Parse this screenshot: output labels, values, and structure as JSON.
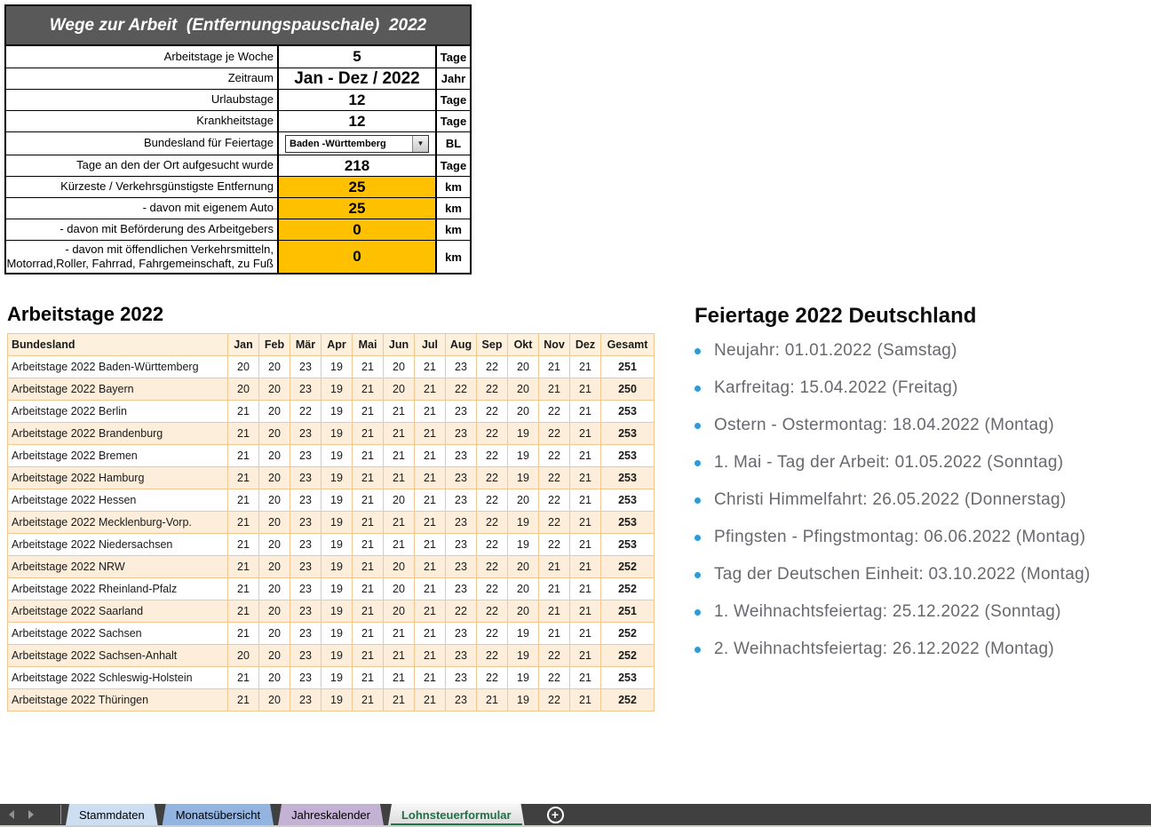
{
  "form": {
    "title": "Wege zur Arbeit  (Entfernungspauschale)  2022",
    "rows": [
      {
        "label": "Arbeitstage je Woche",
        "value": "5",
        "unit": "Tage",
        "highlight": false,
        "type": "value"
      },
      {
        "label": "Zeitraum",
        "value": "Jan - Dez / 2022",
        "unit": "Jahr",
        "highlight": false,
        "type": "value"
      },
      {
        "label": "Urlaubstage",
        "value": "12",
        "unit": "Tage",
        "highlight": false,
        "type": "value"
      },
      {
        "label": "Krankheitstage",
        "value": "12",
        "unit": "Tage",
        "highlight": false,
        "type": "value"
      },
      {
        "label": "Bundesland für Feiertage",
        "value": "Baden -Württemberg",
        "unit": "BL",
        "highlight": false,
        "type": "dropdown"
      },
      {
        "label": "Tage an den der Ort aufgesucht wurde",
        "value": "218",
        "unit": "Tage",
        "highlight": false,
        "type": "value"
      },
      {
        "label": "Kürzeste / Verkehrsgünstigste Entfernung",
        "value": "25",
        "unit": "km",
        "highlight": true,
        "type": "value"
      },
      {
        "label": "- davon mit eigenem Auto",
        "value": "25",
        "unit": "km",
        "highlight": true,
        "type": "value"
      },
      {
        "label": "- davon mit Beförderung des Arbeitgebers",
        "value": "0",
        "unit": "km",
        "highlight": true,
        "type": "value"
      },
      {
        "label": "- davon mit öffendlichen Verkehrsmitteln,\nMotorrad,Roller, Fahrrad, Fahrgemeinschaft, zu Fuß",
        "value": "0",
        "unit": "km",
        "highlight": true,
        "type": "value"
      }
    ],
    "dropdown_icon": "chevron-down-icon",
    "highlight_color": "#FFC000"
  },
  "worktable": {
    "heading": "Arbeitstage 2022",
    "columns": [
      "Bundesland",
      "Jan",
      "Feb",
      "Mär",
      "Apr",
      "Mai",
      "Jun",
      "Jul",
      "Aug",
      "Sep",
      "Okt",
      "Nov",
      "Dez",
      "Gesamt"
    ],
    "rows": [
      {
        "name": "Arbeitstage 2022 Baden-Württemberg",
        "values": [
          20,
          20,
          23,
          19,
          21,
          20,
          21,
          23,
          22,
          20,
          21,
          21
        ],
        "total": 251
      },
      {
        "name": "Arbeitstage 2022 Bayern",
        "values": [
          20,
          20,
          23,
          19,
          21,
          20,
          21,
          22,
          22,
          20,
          21,
          21
        ],
        "total": 250
      },
      {
        "name": "Arbeitstage 2022 Berlin",
        "values": [
          21,
          20,
          22,
          19,
          21,
          21,
          21,
          23,
          22,
          20,
          22,
          21
        ],
        "total": 253
      },
      {
        "name": "Arbeitstage 2022 Brandenburg",
        "values": [
          21,
          20,
          23,
          19,
          21,
          21,
          21,
          23,
          22,
          19,
          22,
          21
        ],
        "total": 253
      },
      {
        "name": "Arbeitstage 2022 Bremen",
        "values": [
          21,
          20,
          23,
          19,
          21,
          21,
          21,
          23,
          22,
          19,
          22,
          21
        ],
        "total": 253
      },
      {
        "name": "Arbeitstage 2022 Hamburg",
        "values": [
          21,
          20,
          23,
          19,
          21,
          21,
          21,
          23,
          22,
          19,
          22,
          21
        ],
        "total": 253
      },
      {
        "name": "Arbeitstage 2022 Hessen",
        "values": [
          21,
          20,
          23,
          19,
          21,
          20,
          21,
          23,
          22,
          20,
          22,
          21
        ],
        "total": 253
      },
      {
        "name": "Arbeitstage 2022 Mecklenburg-Vorp.",
        "values": [
          21,
          20,
          23,
          19,
          21,
          21,
          21,
          23,
          22,
          19,
          22,
          21
        ],
        "total": 253
      },
      {
        "name": "Arbeitstage 2022 Niedersachsen",
        "values": [
          21,
          20,
          23,
          19,
          21,
          21,
          21,
          23,
          22,
          19,
          22,
          21
        ],
        "total": 253
      },
      {
        "name": "Arbeitstage 2022 NRW",
        "values": [
          21,
          20,
          23,
          19,
          21,
          20,
          21,
          23,
          22,
          20,
          21,
          21
        ],
        "total": 252
      },
      {
        "name": "Arbeitstage 2022 Rheinland-Pfalz",
        "values": [
          21,
          20,
          23,
          19,
          21,
          20,
          21,
          23,
          22,
          20,
          21,
          21
        ],
        "total": 252
      },
      {
        "name": "Arbeitstage 2022 Saarland",
        "values": [
          21,
          20,
          23,
          19,
          21,
          20,
          21,
          22,
          22,
          20,
          21,
          21
        ],
        "total": 251
      },
      {
        "name": "Arbeitstage 2022 Sachsen",
        "values": [
          21,
          20,
          23,
          19,
          21,
          21,
          21,
          23,
          22,
          19,
          21,
          21
        ],
        "total": 252
      },
      {
        "name": "Arbeitstage 2022 Sachsen-Anhalt",
        "values": [
          20,
          20,
          23,
          19,
          21,
          21,
          21,
          23,
          22,
          19,
          22,
          21
        ],
        "total": 252
      },
      {
        "name": "Arbeitstage 2022 Schleswig-Holstein",
        "values": [
          21,
          20,
          23,
          19,
          21,
          21,
          21,
          23,
          22,
          19,
          22,
          21
        ],
        "total": 253
      },
      {
        "name": "Arbeitstage 2022 Thüringen",
        "values": [
          21,
          20,
          23,
          19,
          21,
          21,
          21,
          23,
          21,
          19,
          22,
          21
        ],
        "total": 252
      }
    ]
  },
  "holidays": {
    "heading": "Feiertage 2022 Deutschland",
    "bullet_color": "#2E9BD9",
    "items": [
      "Neujahr: 01.01.2022 (Samstag)",
      "Karfreitag: 15.04.2022 (Freitag)",
      "Ostern - Ostermontag: 18.04.2022 (Montag)",
      "1. Mai - Tag der Arbeit: 01.05.2022 (Sonntag)",
      "Christi Himmelfahrt: 26.05.2022 (Donnerstag)",
      "Pfingsten - Pfingstmontag: 06.06.2022 (Montag)",
      "Tag der Deutschen Einheit: 03.10.2022 (Montag)",
      "1. Weihnachtsfeiertag: 25.12.2022 (Sonntag)",
      "2. Weihnachtsfeiertag: 26.12.2022 (Montag)"
    ]
  },
  "tabbar": {
    "tabs": [
      {
        "label": "Stammdaten",
        "color": "#CDDEF2",
        "active": false
      },
      {
        "label": "Monatsübersicht",
        "color": "#92B4DF",
        "active": false
      },
      {
        "label": "Jahreskalender",
        "color": "#C3B2D4",
        "active": false
      },
      {
        "label": "Lohnsteuerformular",
        "color": "",
        "active": true
      }
    ],
    "active_text_color": "#1F7145",
    "add_icon": "plus-circle-icon",
    "nav_icons": [
      "scroll-left-icon",
      "scroll-right-icon"
    ]
  }
}
